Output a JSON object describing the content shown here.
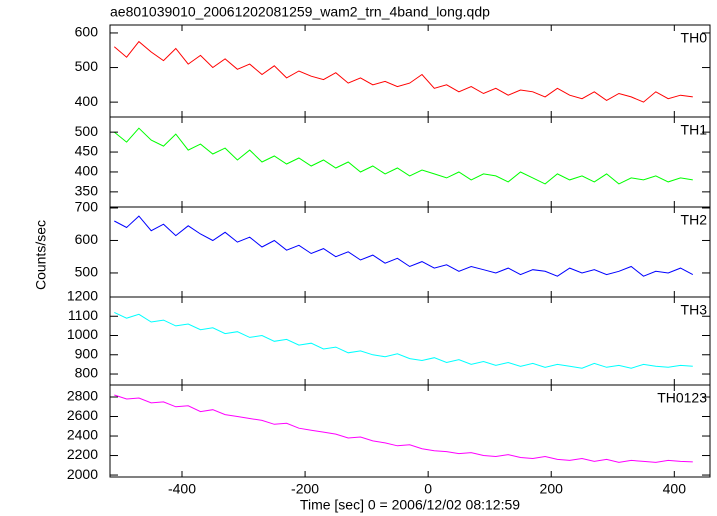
{
  "chart_data": {
    "type": "line",
    "title": "ae801039010_20061202081259_wam2_trn_4band_long.qdp",
    "xlabel": "Time [sec] 0 = 2006/12/02 08:12:59",
    "ylabel": "Counts/sec",
    "xlim": [
      -517,
      458
    ],
    "xticks": [
      -400,
      -200,
      0,
      200,
      400
    ],
    "x": [
      -510,
      -490,
      -470,
      -450,
      -430,
      -410,
      -390,
      -370,
      -350,
      -330,
      -310,
      -290,
      -270,
      -250,
      -230,
      -210,
      -190,
      -170,
      -150,
      -130,
      -110,
      -90,
      -70,
      -50,
      -30,
      -10,
      10,
      30,
      50,
      70,
      90,
      110,
      130,
      150,
      170,
      190,
      210,
      230,
      250,
      270,
      290,
      310,
      330,
      350,
      370,
      390,
      410,
      430
    ],
    "panels": [
      {
        "name": "TH0",
        "color": "#ff0000",
        "ylim": [
          357,
          623
        ],
        "yticks": [
          400,
          500,
          600
        ],
        "values": [
          560,
          530,
          575,
          545,
          520,
          555,
          510,
          535,
          500,
          525,
          495,
          510,
          480,
          505,
          470,
          490,
          475,
          465,
          485,
          455,
          470,
          450,
          460,
          445,
          455,
          480,
          440,
          450,
          430,
          445,
          425,
          440,
          420,
          435,
          430,
          415,
          440,
          420,
          410,
          430,
          405,
          425,
          415,
          400,
          430,
          410,
          420,
          415
        ]
      },
      {
        "name": "TH1",
        "color": "#00ff00",
        "ylim": [
          312,
          538
        ],
        "yticks": [
          350,
          400,
          450,
          500
        ],
        "values": [
          500,
          475,
          510,
          480,
          465,
          495,
          455,
          470,
          445,
          460,
          430,
          455,
          425,
          440,
          420,
          435,
          415,
          430,
          410,
          425,
          400,
          415,
          395,
          410,
          390,
          405,
          395,
          385,
          400,
          380,
          395,
          390,
          375,
          400,
          385,
          370,
          395,
          380,
          390,
          375,
          395,
          370,
          385,
          380,
          390,
          375,
          385,
          380
        ]
      },
      {
        "name": "TH2",
        "color": "#0000ff",
        "ylim": [
          426,
          703
        ],
        "yticks": [
          500,
          600,
          700
        ],
        "values": [
          660,
          640,
          675,
          630,
          650,
          615,
          645,
          620,
          600,
          625,
          595,
          610,
          580,
          600,
          570,
          585,
          560,
          575,
          550,
          565,
          540,
          555,
          530,
          545,
          520,
          535,
          515,
          525,
          505,
          520,
          510,
          500,
          515,
          495,
          510,
          505,
          490,
          515,
          500,
          510,
          495,
          505,
          520,
          490,
          505,
          500,
          515,
          495
        ]
      },
      {
        "name": "TH3",
        "color": "#00ffff",
        "ylim": [
          743,
          1200
        ],
        "yticks": [
          800,
          900,
          1000,
          1100,
          1200
        ],
        "values": [
          1120,
          1090,
          1110,
          1070,
          1080,
          1050,
          1060,
          1030,
          1040,
          1010,
          1020,
          990,
          1000,
          970,
          980,
          950,
          960,
          930,
          940,
          910,
          920,
          900,
          890,
          905,
          880,
          870,
          885,
          860,
          875,
          850,
          865,
          845,
          860,
          840,
          855,
          835,
          850,
          840,
          830,
          855,
          835,
          845,
          830,
          850,
          840,
          835,
          845,
          840
        ]
      },
      {
        "name": "TH0123",
        "color": "#ff00ff",
        "ylim": [
          1980,
          2923
        ],
        "yticks": [
          2000,
          2200,
          2400,
          2600,
          2800
        ],
        "values": [
          2820,
          2780,
          2790,
          2740,
          2750,
          2700,
          2710,
          2650,
          2670,
          2620,
          2600,
          2580,
          2560,
          2520,
          2530,
          2480,
          2460,
          2440,
          2420,
          2380,
          2390,
          2350,
          2330,
          2300,
          2310,
          2270,
          2250,
          2240,
          2220,
          2230,
          2200,
          2190,
          2210,
          2180,
          2170,
          2190,
          2160,
          2150,
          2170,
          2140,
          2160,
          2130,
          2150,
          2140,
          2130,
          2150,
          2140,
          2135
        ]
      }
    ]
  }
}
